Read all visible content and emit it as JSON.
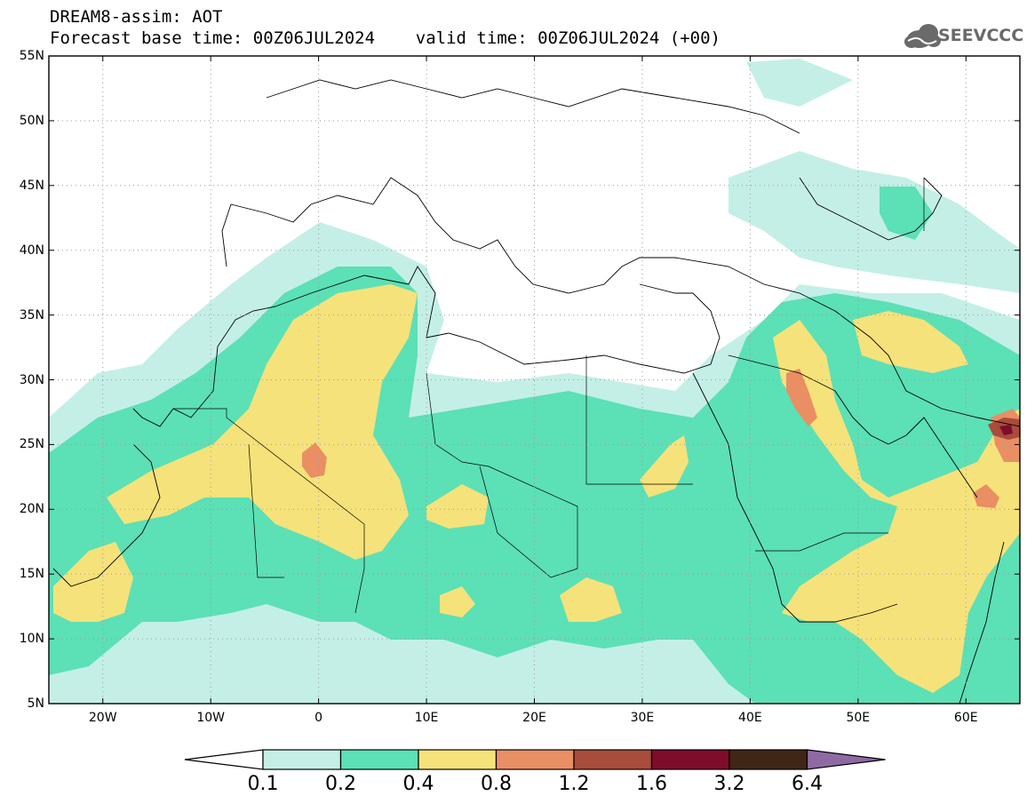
{
  "header": {
    "line1": "DREAM8-assim: AOT",
    "line2": "Forecast base time: 00Z06JUL2024    valid time: 00Z06JUL2024 (+00)"
  },
  "logo": {
    "text": "SEEVCCC",
    "icon": "cloud-icon"
  },
  "map": {
    "lon_range": [
      -25,
      65
    ],
    "lat_range": [
      5,
      55
    ],
    "lat_ticks": [
      {
        "value": 55,
        "label": "55N"
      },
      {
        "value": 50,
        "label": "50N"
      },
      {
        "value": 45,
        "label": "45N"
      },
      {
        "value": 40,
        "label": "40N"
      },
      {
        "value": 35,
        "label": "35N"
      },
      {
        "value": 30,
        "label": "30N"
      },
      {
        "value": 25,
        "label": "25N"
      },
      {
        "value": 20,
        "label": "20N"
      },
      {
        "value": 15,
        "label": "15N"
      },
      {
        "value": 10,
        "label": "10N"
      },
      {
        "value": 5,
        "label": "5N"
      }
    ],
    "lon_ticks": [
      {
        "value": -20,
        "label": "20W"
      },
      {
        "value": -10,
        "label": "10W"
      },
      {
        "value": 0,
        "label": "0"
      },
      {
        "value": 10,
        "label": "10E"
      },
      {
        "value": 20,
        "label": "20E"
      },
      {
        "value": 30,
        "label": "30E"
      },
      {
        "value": 40,
        "label": "40E"
      },
      {
        "value": 50,
        "label": "50E"
      },
      {
        "value": 60,
        "label": "60E"
      }
    ],
    "grid": true
  },
  "colorbar": {
    "labels": [
      "0.1",
      "0.2",
      "0.4",
      "0.8",
      "1.2",
      "1.6",
      "3.2",
      "6.4"
    ],
    "colors": [
      "#c4efe7",
      "#5ce0b6",
      "#f6e27a",
      "#ea8e64",
      "#a94c3c",
      "#7e0c2b",
      "#3f2616",
      "#8f69a4"
    ]
  }
}
